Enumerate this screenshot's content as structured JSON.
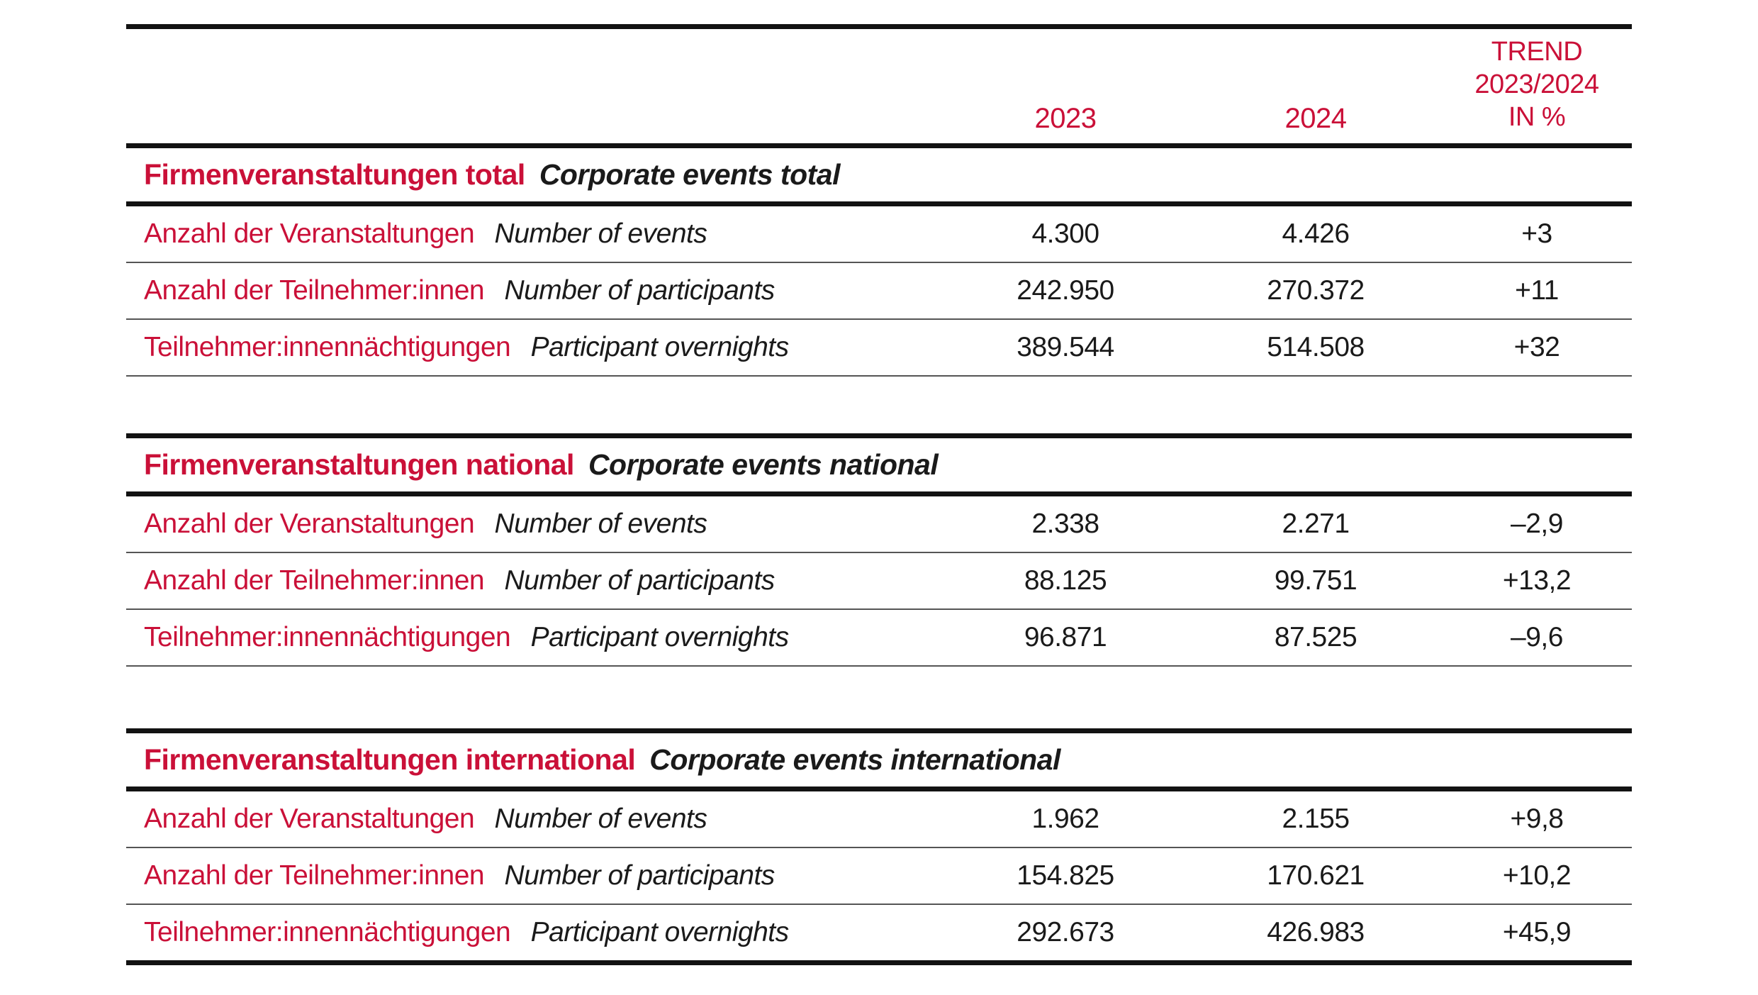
{
  "colors": {
    "accent": "#ca1038",
    "text": "#1a1a1a",
    "thick_rule": "#121212",
    "thin_rule": "#555555",
    "background": "#ffffff"
  },
  "header": {
    "col_2023": "2023",
    "col_2024": "2024",
    "col_trend": "TREND\n2023/2024\nIN %"
  },
  "sections": [
    {
      "title_de": "Firmenveranstaltungen total",
      "title_en": "Corporate events total",
      "rows": [
        {
          "label_de": "Anzahl der Veranstaltungen",
          "label_en": "Number of events",
          "v2023": "4.300",
          "v2024": "4.426",
          "trend": "+3"
        },
        {
          "label_de": "Anzahl der Teilnehmer:innen",
          "label_en": "Number of participants",
          "v2023": "242.950",
          "v2024": "270.372",
          "trend": "+11"
        },
        {
          "label_de": "Teilnehmer:innennächtigungen",
          "label_en": "Participant overnights",
          "v2023": "389.544",
          "v2024": "514.508",
          "trend": "+32"
        }
      ]
    },
    {
      "title_de": "Firmenveranstaltungen national",
      "title_en": "Corporate events national",
      "rows": [
        {
          "label_de": "Anzahl der Veranstaltungen",
          "label_en": "Number of events",
          "v2023": "2.338",
          "v2024": "2.271",
          "trend": "–2,9"
        },
        {
          "label_de": "Anzahl der Teilnehmer:innen",
          "label_en": "Number of participants",
          "v2023": "88.125",
          "v2024": "99.751",
          "trend": "+13,2"
        },
        {
          "label_de": "Teilnehmer:innennächtigungen",
          "label_en": "Participant overnights",
          "v2023": "96.871",
          "v2024": "87.525",
          "trend": "–9,6"
        }
      ]
    },
    {
      "title_de": "Firmenveranstaltungen international",
      "title_en": "Corporate events international",
      "rows": [
        {
          "label_de": "Anzahl der Veranstaltungen",
          "label_en": "Number of events",
          "v2023": "1.962",
          "v2024": "2.155",
          "trend": "+9,8"
        },
        {
          "label_de": "Anzahl der Teilnehmer:innen",
          "label_en": "Number of participants",
          "v2023": "154.825",
          "v2024": "170.621",
          "trend": "+10,2"
        },
        {
          "label_de": "Teilnehmer:innennächtigungen",
          "label_en": "Participant overnights",
          "v2023": "292.673",
          "v2024": "426.983",
          "trend": "+45,9"
        }
      ]
    }
  ]
}
